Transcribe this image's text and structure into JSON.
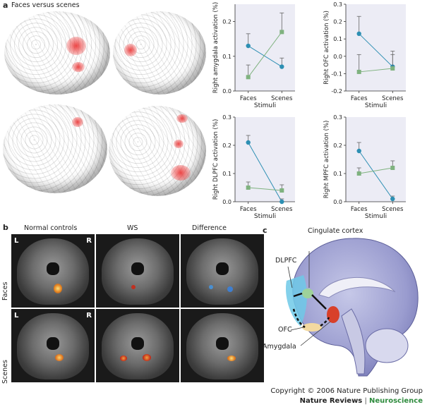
{
  "panel_a": {
    "letter": "a",
    "title": "Faces versus scenes"
  },
  "panel_b": {
    "letter": "b",
    "col_normal": "Normal controls",
    "col_ws": "WS",
    "col_diff": "Difference",
    "row_faces": "Faces",
    "row_scenes": "Scenes",
    "left": "L",
    "right": "R"
  },
  "panel_c": {
    "letter": "c",
    "cingulate": "Cingulate cortex",
    "dlpfc": "DLPFC",
    "ofc": "OFC",
    "amygdala": "Amygdala"
  },
  "copyright": {
    "line1": "Copyright © 2006 Nature Publishing Group",
    "journal": "Nature Reviews",
    "sep": " | ",
    "section": "Neuroscience"
  },
  "colors": {
    "blue_series": "#2d8fb3",
    "green_series": "#7fb27f",
    "plot_bg": "#ececf5",
    "neuroscience": "#2e8b3d"
  },
  "chart_data": [
    {
      "type": "line",
      "ylabel": "Right amygdala activation (%)",
      "xlabel": "Stimuli",
      "categories": [
        "Faces",
        "Scenes"
      ],
      "ylim": [
        0,
        0.25
      ],
      "yticks": [
        "0.0",
        "0.1",
        "0.2"
      ],
      "ytick_values": [
        0,
        0.1,
        0.2
      ],
      "series": [
        {
          "color": "blue",
          "values": [
            0.13,
            0.07
          ],
          "err": [
            0.035,
            0.025
          ]
        },
        {
          "color": "green",
          "values": [
            0.04,
            0.17
          ],
          "err": [
            0.035,
            0.055
          ]
        }
      ]
    },
    {
      "type": "line",
      "ylabel": "Right OFC activation (%)",
      "xlabel": "Stimuli",
      "categories": [
        "Faces",
        "Scenes"
      ],
      "ylim": [
        -0.2,
        0.3
      ],
      "yticks": [
        "-0.2",
        "-0.1",
        "0.0",
        "0.1",
        "0.2",
        "0.3"
      ],
      "ytick_values": [
        -0.2,
        -0.1,
        0,
        0.1,
        0.2,
        0.3
      ],
      "series": [
        {
          "color": "blue",
          "values": [
            0.13,
            -0.06
          ],
          "err": [
            0.1,
            0.09
          ]
        },
        {
          "color": "green",
          "values": [
            -0.09,
            -0.07
          ],
          "err": [
            0.1,
            0.08
          ]
        }
      ]
    },
    {
      "type": "line",
      "ylabel": "Right DLPFC activation (%)",
      "xlabel": "Stimuli",
      "categories": [
        "Faces",
        "Scenes"
      ],
      "ylim": [
        0,
        0.3
      ],
      "yticks": [
        "0.0",
        "0.1",
        "0.2",
        "0.3"
      ],
      "ytick_values": [
        0,
        0.1,
        0.2,
        0.3
      ],
      "series": [
        {
          "color": "blue",
          "values": [
            0.21,
            0.0
          ],
          "err": [
            0.025,
            0.01
          ]
        },
        {
          "color": "green",
          "values": [
            0.05,
            0.04
          ],
          "err": [
            0.02,
            0.02
          ]
        }
      ]
    },
    {
      "type": "line",
      "ylabel": "Right MPFC activation (%)",
      "xlabel": "Stimuli",
      "categories": [
        "Faces",
        "Scenes"
      ],
      "ylim": [
        0,
        0.3
      ],
      "yticks": [
        "0.0",
        "0.1",
        "0.2",
        "0.3"
      ],
      "ytick_values": [
        0,
        0.1,
        0.2,
        0.3
      ],
      "series": [
        {
          "color": "blue",
          "values": [
            0.18,
            0.01
          ],
          "err": [
            0.03,
            0.01
          ]
        },
        {
          "color": "green",
          "values": [
            0.1,
            0.12
          ],
          "err": [
            0.02,
            0.025
          ]
        }
      ]
    }
  ]
}
